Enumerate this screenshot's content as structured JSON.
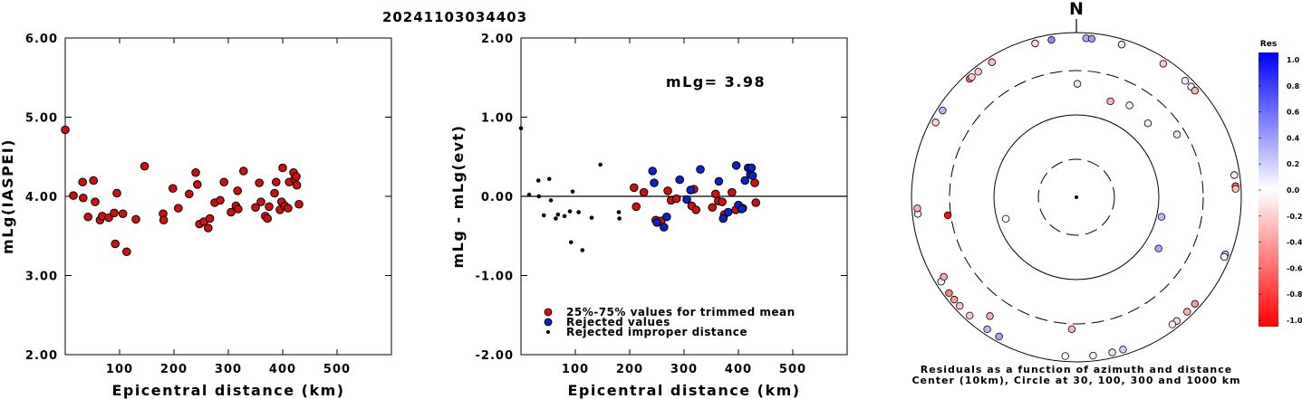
{
  "title": "20241103034403",
  "colors": {
    "red": "#d01010",
    "blue": "#0a22c8",
    "black": "#000000"
  },
  "chart_data": [
    {
      "type": "scatter",
      "xlabel": "Epicentral distance (km)",
      "ylabel": "mLg(IASPEI)",
      "xlim": [
        0,
        600
      ],
      "ylim": [
        2.0,
        6.0
      ],
      "xticks": [
        "100",
        "200",
        "300",
        "400",
        "500"
      ],
      "yticks": [
        "2.00",
        "3.00",
        "4.00",
        "5.00",
        "6.00"
      ],
      "series": [
        {
          "marker": "red-circle",
          "points": [
            [
              0,
              4.84
            ],
            [
              15,
              4.01
            ],
            [
              32,
              4.18
            ],
            [
              33,
              3.98
            ],
            [
              42,
              3.74
            ],
            [
              52,
              4.2
            ],
            [
              55,
              3.93
            ],
            [
              64,
              3.7
            ],
            [
              68,
              3.75
            ],
            [
              80,
              3.73
            ],
            [
              90,
              3.79
            ],
            [
              92,
              3.4
            ],
            [
              95,
              4.04
            ],
            [
              106,
              3.78
            ],
            [
              113,
              3.3
            ],
            [
              130,
              3.71
            ],
            [
              146,
              4.38
            ],
            [
              180,
              3.78
            ],
            [
              181,
              3.7
            ],
            [
              198,
              4.1
            ],
            [
              208,
              3.85
            ],
            [
              228,
              4.03
            ],
            [
              240,
              4.3
            ],
            [
              243,
              4.15
            ],
            [
              247,
              3.65
            ],
            [
              255,
              3.68
            ],
            [
              263,
              3.6
            ],
            [
              266,
              3.72
            ],
            [
              275,
              3.92
            ],
            [
              285,
              3.95
            ],
            [
              292,
              4.18
            ],
            [
              305,
              3.8
            ],
            [
              314,
              3.88
            ],
            [
              317,
              4.07
            ],
            [
              318,
              3.84
            ],
            [
              328,
              4.32
            ],
            [
              350,
              3.86
            ],
            [
              357,
              4.17
            ],
            [
              360,
              3.93
            ],
            [
              368,
              3.75
            ],
            [
              372,
              3.72
            ],
            [
              375,
              3.87
            ],
            [
              385,
              4.04
            ],
            [
              388,
              4.18
            ],
            [
              395,
              3.83
            ],
            [
              398,
              3.93
            ],
            [
              400,
              4.36
            ],
            [
              404,
              3.88
            ],
            [
              410,
              3.85
            ],
            [
              412,
              4.18
            ],
            [
              420,
              4.3
            ],
            [
              422,
              4.22
            ],
            [
              425,
              4.25
            ],
            [
              426,
              4.14
            ],
            [
              430,
              3.9
            ]
          ]
        }
      ]
    },
    {
      "type": "scatter",
      "xlabel": "Epicentral distance (km)",
      "ylabel": "mLg - mLg(evt)",
      "annotation": "mLg= 3.98",
      "xlim": [
        0,
        600
      ],
      "ylim": [
        -2.0,
        2.0
      ],
      "xticks": [
        "100",
        "200",
        "300",
        "400",
        "500"
      ],
      "yticks": [
        "-2.00",
        "-1.00",
        "0.00",
        "1.00",
        "2.00"
      ],
      "hline": 0.0,
      "series": [
        {
          "name": "25%-75% values for trimmed mean",
          "marker": "red-circle",
          "points": [
            [
              208,
              0.11
            ],
            [
              212,
              -0.13
            ],
            [
              226,
              0.05
            ],
            [
              248,
              -0.3
            ],
            [
              258,
              -0.31
            ],
            [
              270,
              0.07
            ],
            [
              276,
              -0.05
            ],
            [
              286,
              -0.03
            ],
            [
              314,
              -0.12
            ],
            [
              318,
              0.09
            ],
            [
              322,
              -0.17
            ],
            [
              352,
              -0.14
            ],
            [
              358,
              0.03
            ],
            [
              363,
              -0.06
            ],
            [
              370,
              -0.07
            ],
            [
              374,
              -0.23
            ],
            [
              388,
              0.05
            ],
            [
              395,
              -0.17
            ],
            [
              408,
              -0.15
            ],
            [
              430,
              0.17
            ],
            [
              432,
              -0.08
            ]
          ]
        },
        {
          "name": "Rejected values",
          "marker": "blue-circle",
          "points": [
            [
              242,
              0.32
            ],
            [
              245,
              0.17
            ],
            [
              250,
              -0.33
            ],
            [
              263,
              -0.39
            ],
            [
              268,
              -0.26
            ],
            [
              292,
              0.21
            ],
            [
              305,
              -0.04
            ],
            [
              312,
              0.08
            ],
            [
              330,
              0.34
            ],
            [
              364,
              0.19
            ],
            [
              372,
              -0.28
            ],
            [
              381,
              -0.2
            ],
            [
              396,
              0.39
            ],
            [
              400,
              -0.11
            ],
            [
              406,
              -0.16
            ],
            [
              412,
              0.2
            ],
            [
              418,
              0.36
            ],
            [
              422,
              0.28
            ],
            [
              424,
              0.36
            ],
            [
              426,
              0.26
            ]
          ]
        },
        {
          "name": "Rejected improper distance",
          "marker": "black-dot",
          "points": [
            [
              0,
              0.86
            ],
            [
              15,
              0.02
            ],
            [
              32,
              0.2
            ],
            [
              33,
              0.0
            ],
            [
              42,
              -0.24
            ],
            [
              52,
              0.22
            ],
            [
              55,
              -0.05
            ],
            [
              64,
              -0.28
            ],
            [
              68,
              -0.23
            ],
            [
              80,
              -0.25
            ],
            [
              90,
              -0.19
            ],
            [
              92,
              -0.58
            ],
            [
              95,
              0.06
            ],
            [
              106,
              -0.2
            ],
            [
              113,
              -0.68
            ],
            [
              130,
              -0.27
            ],
            [
              146,
              0.4
            ],
            [
              180,
              -0.2
            ],
            [
              181,
              -0.28
            ]
          ]
        }
      ]
    },
    {
      "type": "polar-scatter",
      "north_label": "N",
      "caption_line1": "Residuals as a function of azimuth and distance",
      "caption_line2": "Center (10km), Circle at 30, 100, 300 and 1000 km",
      "colorbar_title": "Res",
      "colorbar_ticks": [
        "1.0",
        "0.8",
        "0.6",
        "0.4",
        "0.2",
        "0.0",
        "-0.2",
        "-0.4",
        "-0.6",
        "-0.8",
        "-1.0"
      ],
      "rings_km": [
        30,
        100,
        300,
        1000
      ],
      "points": [
        {
          "az": 0.5,
          "dist": 216,
          "res": 0.11
        },
        {
          "az": 3.5,
          "dist": 1033,
          "res": 0.32
        },
        {
          "az": 5.5,
          "dist": 1085,
          "res": 0.38
        },
        {
          "az": 16.5,
          "dist": 1043,
          "res": 0.1
        },
        {
          "az": 19.5,
          "dist": 162,
          "res": -0.3
        },
        {
          "az": 30,
          "dist": 180,
          "res": -0.05
        },
        {
          "az": 33,
          "dist": 1000,
          "res": -0.2
        },
        {
          "az": 43,
          "dist": 840,
          "res": 0.06
        },
        {
          "az": 44,
          "dist": 166,
          "res": 0.07
        },
        {
          "az": 46,
          "dist": 1040,
          "res": 0.03
        },
        {
          "az": 48,
          "dist": 1060,
          "res": -0.3
        },
        {
          "az": 58,
          "dist": 245,
          "res": 0.1
        },
        {
          "az": 82,
          "dist": 1055,
          "res": -0.08
        },
        {
          "az": 86,
          "dist": 1075,
          "res": -0.6
        },
        {
          "az": 87,
          "dist": 1175,
          "res": -0.25
        },
        {
          "az": 103,
          "dist": 113,
          "res": 0.27
        },
        {
          "az": 111,
          "dist": 1320,
          "res": 0.24
        },
        {
          "az": 112,
          "dist": 1200,
          "res": 0.36
        },
        {
          "az": 112,
          "dist": 1100,
          "res": 0.04
        },
        {
          "az": 122,
          "dist": 143,
          "res": 0.34
        },
        {
          "az": 132,
          "dist": 1120,
          "res": -0.4
        },
        {
          "az": 136,
          "dist": 1400,
          "res": -0.3
        },
        {
          "az": 141,
          "dist": 1150,
          "res": -0.17
        },
        {
          "az": 143,
          "dist": 1230,
          "res": 0.05
        },
        {
          "az": 163,
          "dist": 1260,
          "res": 0.2
        },
        {
          "az": 167,
          "dist": 1290,
          "res": 0.09
        },
        {
          "az": 174,
          "dist": 1350,
          "res": 0.06
        },
        {
          "az": 182,
          "dist": 355,
          "res": -0.3
        },
        {
          "az": 184,
          "dist": 1340,
          "res": 0.03
        },
        {
          "az": 209,
          "dist": 1390,
          "res": 0.34
        },
        {
          "az": 214,
          "dist": 1090,
          "res": 0.28
        },
        {
          "az": 216,
          "dist": 570,
          "res": -0.31
        },
        {
          "az": 222,
          "dist": 850,
          "res": -0.2
        },
        {
          "az": 227,
          "dist": 1270,
          "res": -0.23
        },
        {
          "az": 230,
          "dist": 1020,
          "res": -0.4
        },
        {
          "az": 233,
          "dist": 1170,
          "res": -0.5
        },
        {
          "az": 238,
          "dist": 1140,
          "res": 0.01
        },
        {
          "az": 239,
          "dist": 725,
          "res": -0.35
        },
        {
          "az": 253,
          "dist": 79,
          "res": -0.02
        },
        {
          "az": 262,
          "dist": 330,
          "res": -0.95
        },
        {
          "az": 264,
          "dist": 1240,
          "res": 0.05
        },
        {
          "az": 266,
          "dist": 1180,
          "res": -0.3
        },
        {
          "az": 298,
          "dist": 1320,
          "res": -0.18
        },
        {
          "az": 303,
          "dist": 1400,
          "res": 0.28
        },
        {
          "az": 318,
          "dist": 1095,
          "res": -0.6
        },
        {
          "az": 319,
          "dist": 1145,
          "res": -0.2
        },
        {
          "az": 322,
          "dist": 1280,
          "res": -0.23
        },
        {
          "az": 328,
          "dist": 1205,
          "res": -0.25
        },
        {
          "az": 345,
          "dist": 1068,
          "res": -0.15
        },
        {
          "az": 351,
          "dist": 1235,
          "res": 0.45
        }
      ]
    }
  ]
}
